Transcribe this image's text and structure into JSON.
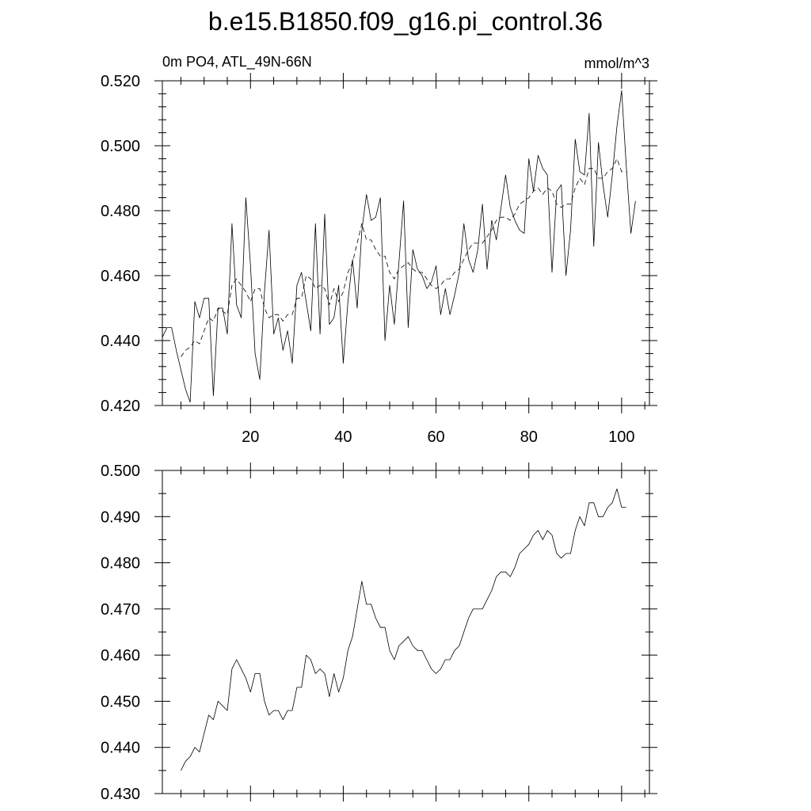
{
  "figure": {
    "title": "b.e15.B1850.f09_g16.pi_control.36",
    "subtitle_left": "0m PO4, ATL_49N-66N",
    "subtitle_right": "mmol/m^3"
  },
  "chart_data": [
    {
      "type": "line",
      "title": "b.e15.B1850.f09_g16.pi_control.36",
      "subtitle": "0m PO4, ATL_49N-66N",
      "units": "mmol/m^3",
      "xlabel": "",
      "ylabel": "",
      "xlim": [
        1,
        106
      ],
      "ylim": [
        0.42,
        0.52
      ],
      "x_ticks": [
        20,
        40,
        60,
        80,
        100
      ],
      "y_ticks": [
        0.42,
        0.44,
        0.46,
        0.48,
        0.5,
        0.52
      ],
      "y_tick_labels": [
        "0.420",
        "0.440",
        "0.460",
        "0.480",
        "0.500",
        "0.520"
      ],
      "grid": false,
      "x_start": 1,
      "series": [
        {
          "style": "solid",
          "values": [
            0.441,
            0.444,
            0.444,
            0.437,
            0.431,
            0.425,
            0.421,
            0.452,
            0.447,
            0.453,
            0.453,
            0.423,
            0.45,
            0.45,
            0.442,
            0.476,
            0.451,
            0.447,
            0.484,
            0.463,
            0.436,
            0.428,
            0.455,
            0.474,
            0.442,
            0.447,
            0.437,
            0.443,
            0.433,
            0.457,
            0.461,
            0.452,
            0.443,
            0.476,
            0.442,
            0.479,
            0.445,
            0.447,
            0.457,
            0.433,
            0.452,
            0.465,
            0.45,
            0.474,
            0.485,
            0.477,
            0.478,
            0.484,
            0.44,
            0.457,
            0.445,
            0.464,
            0.483,
            0.444,
            0.468,
            0.462,
            0.46,
            0.456,
            0.458,
            0.463,
            0.448,
            0.456,
            0.448,
            0.454,
            0.461,
            0.476,
            0.465,
            0.461,
            0.468,
            0.482,
            0.462,
            0.477,
            0.471,
            0.481,
            0.491,
            0.481,
            0.477,
            0.474,
            0.473,
            0.496,
            0.486,
            0.497,
            0.493,
            0.491,
            0.461,
            0.486,
            0.488,
            0.46,
            0.474,
            0.502,
            0.492,
            0.491,
            0.51,
            0.469,
            0.501,
            0.488,
            0.478,
            0.491,
            0.506,
            0.517,
            0.494,
            0.473,
            0.483
          ]
        },
        {
          "style": "dashed",
          "x_start": 5,
          "values": [
            0.435,
            0.437,
            0.438,
            0.44,
            0.439,
            0.443,
            0.447,
            0.446,
            0.45,
            0.449,
            0.448,
            0.457,
            0.459,
            0.457,
            0.455,
            0.452,
            0.456,
            0.456,
            0.45,
            0.447,
            0.448,
            0.448,
            0.446,
            0.448,
            0.448,
            0.453,
            0.453,
            0.46,
            0.459,
            0.456,
            0.457,
            0.456,
            0.451,
            0.456,
            0.452,
            0.455,
            0.461,
            0.464,
            0.47,
            0.476,
            0.471,
            0.471,
            0.468,
            0.466,
            0.466,
            0.461,
            0.459,
            0.462,
            0.463,
            0.464,
            0.462,
            0.461,
            0.461,
            0.459,
            0.457,
            0.456,
            0.457,
            0.459,
            0.459,
            0.461,
            0.462,
            0.465,
            0.468,
            0.47,
            0.47,
            0.47,
            0.472,
            0.474,
            0.477,
            0.478,
            0.478,
            0.477,
            0.479,
            0.482,
            0.483,
            0.484,
            0.486,
            0.487,
            0.485,
            0.487,
            0.486,
            0.482,
            0.481,
            0.482,
            0.482,
            0.487,
            0.49,
            0.488,
            0.493,
            0.493,
            0.49,
            0.49,
            0.492,
            0.493,
            0.496,
            0.492,
            0.492
          ]
        }
      ]
    },
    {
      "type": "line",
      "xlabel": "",
      "ylabel": "",
      "xlim": [
        1,
        106
      ],
      "ylim": [
        0.43,
        0.5
      ],
      "x_ticks": [
        20,
        40,
        60,
        80,
        100
      ],
      "y_ticks": [
        0.43,
        0.44,
        0.45,
        0.46,
        0.47,
        0.48,
        0.49,
        0.5
      ],
      "y_tick_labels": [
        "0.430",
        "0.440",
        "0.450",
        "0.460",
        "0.470",
        "0.480",
        "0.490",
        "0.500"
      ],
      "grid": false,
      "series": [
        {
          "style": "solid",
          "x_start": 5,
          "values": [
            0.435,
            0.437,
            0.438,
            0.44,
            0.439,
            0.443,
            0.447,
            0.446,
            0.45,
            0.449,
            0.448,
            0.457,
            0.459,
            0.457,
            0.455,
            0.452,
            0.456,
            0.456,
            0.45,
            0.447,
            0.448,
            0.448,
            0.446,
            0.448,
            0.448,
            0.453,
            0.453,
            0.46,
            0.459,
            0.456,
            0.457,
            0.456,
            0.451,
            0.456,
            0.452,
            0.455,
            0.461,
            0.464,
            0.47,
            0.476,
            0.471,
            0.471,
            0.468,
            0.466,
            0.466,
            0.461,
            0.459,
            0.462,
            0.463,
            0.464,
            0.462,
            0.461,
            0.461,
            0.459,
            0.457,
            0.456,
            0.457,
            0.459,
            0.459,
            0.461,
            0.462,
            0.465,
            0.468,
            0.47,
            0.47,
            0.47,
            0.472,
            0.474,
            0.477,
            0.478,
            0.478,
            0.477,
            0.479,
            0.482,
            0.483,
            0.484,
            0.486,
            0.487,
            0.485,
            0.487,
            0.486,
            0.482,
            0.481,
            0.482,
            0.482,
            0.487,
            0.49,
            0.488,
            0.493,
            0.493,
            0.49,
            0.49,
            0.492,
            0.493,
            0.496,
            0.492,
            0.492
          ]
        }
      ]
    }
  ]
}
